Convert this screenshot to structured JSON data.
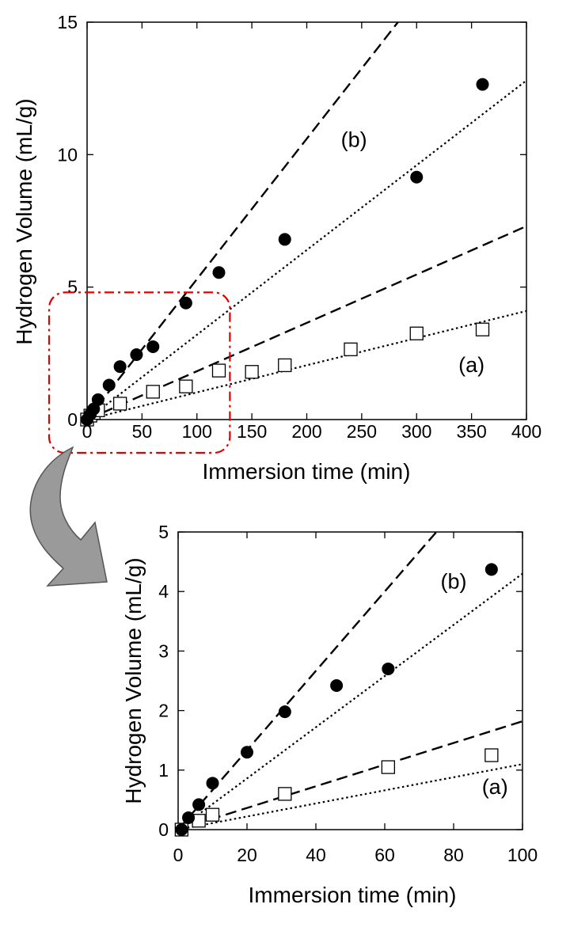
{
  "chart_data": [
    {
      "type": "scatter",
      "xlabel": "Immersion time (min)",
      "ylabel": "Hydrogen Volume (mL/g)",
      "xlim": [
        0,
        400
      ],
      "ylim": [
        0,
        15
      ],
      "xticks": [
        0,
        50,
        100,
        150,
        200,
        250,
        300,
        350,
        400
      ],
      "yticks": [
        0,
        5,
        10,
        15
      ],
      "grid": false,
      "series": [
        {
          "name": "(a)",
          "marker": "open-square",
          "x": [
            0,
            3,
            6,
            10,
            30,
            60,
            90,
            120,
            150,
            180,
            240,
            300,
            360
          ],
          "y": [
            0.0,
            0.15,
            0.25,
            0.35,
            0.6,
            1.05,
            1.25,
            1.85,
            1.8,
            2.05,
            2.65,
            3.25,
            3.4
          ]
        },
        {
          "name": "(b)",
          "marker": "filled-circle",
          "x": [
            0,
            3,
            6,
            10,
            20,
            30,
            45,
            60,
            90,
            120,
            180,
            300,
            360
          ],
          "y": [
            0.0,
            0.2,
            0.4,
            0.75,
            1.3,
            2.0,
            2.45,
            2.75,
            4.4,
            5.55,
            6.8,
            9.15,
            12.65
          ]
        }
      ],
      "fit_lines": [
        {
          "series": "(b)",
          "style": "dashed",
          "x": [
            0,
            283
          ],
          "y": [
            0,
            15
          ]
        },
        {
          "series": "(b)",
          "style": "dotted",
          "x": [
            0,
            400
          ],
          "y": [
            0,
            12.8
          ]
        },
        {
          "series": "(a)",
          "style": "dashed",
          "x": [
            0,
            400
          ],
          "y": [
            0,
            7.3
          ]
        },
        {
          "series": "(a)",
          "style": "dotted",
          "x": [
            0,
            400
          ],
          "y": [
            0,
            4.1
          ]
        }
      ],
      "annotations": [
        {
          "text": "(b)",
          "x": 243,
          "y": 10.3
        },
        {
          "text": "(a)",
          "x": 350,
          "y": 1.8
        }
      ],
      "zoom_region": {
        "x": [
          0,
          130
        ],
        "y": [
          0,
          4.8
        ],
        "color": "#e00000"
      }
    },
    {
      "type": "scatter",
      "xlabel": "Immersion time (min)",
      "ylabel": "Hydrogen Volume (mL/g)",
      "xlim": [
        0,
        100
      ],
      "ylim": [
        0,
        5
      ],
      "xticks": [
        0,
        20,
        40,
        60,
        80,
        100
      ],
      "yticks": [
        0,
        1,
        2,
        3,
        4,
        5
      ],
      "grid": false,
      "series": [
        {
          "name": "(a)",
          "marker": "open-square",
          "x": [
            1,
            6,
            10,
            31,
            61,
            91
          ],
          "y": [
            0.0,
            0.15,
            0.25,
            0.6,
            1.05,
            1.25
          ]
        },
        {
          "name": "(b)",
          "marker": "filled-circle",
          "x": [
            1,
            3,
            6,
            10,
            20,
            31,
            46,
            61,
            91
          ],
          "y": [
            0.0,
            0.2,
            0.42,
            0.78,
            1.3,
            1.98,
            2.42,
            2.7,
            4.37
          ]
        }
      ],
      "fit_lines": [
        {
          "series": "(b)",
          "style": "dashed",
          "x": [
            0,
            75
          ],
          "y": [
            0,
            5
          ]
        },
        {
          "series": "(b)",
          "style": "dotted",
          "x": [
            0,
            100
          ],
          "y": [
            0,
            4.3
          ]
        },
        {
          "series": "(a)",
          "style": "dashed",
          "x": [
            0,
            100
          ],
          "y": [
            0,
            1.82
          ]
        },
        {
          "series": "(a)",
          "style": "dotted",
          "x": [
            0,
            100
          ],
          "y": [
            0,
            1.1
          ]
        }
      ],
      "annotations": [
        {
          "text": "(b)",
          "x": 80,
          "y": 4.05
        },
        {
          "text": "(a)",
          "x": 92,
          "y": 0.6
        }
      ]
    }
  ],
  "colors": {
    "zoom_box": "#e00000",
    "arrow_fill": "#9a9a9a"
  }
}
